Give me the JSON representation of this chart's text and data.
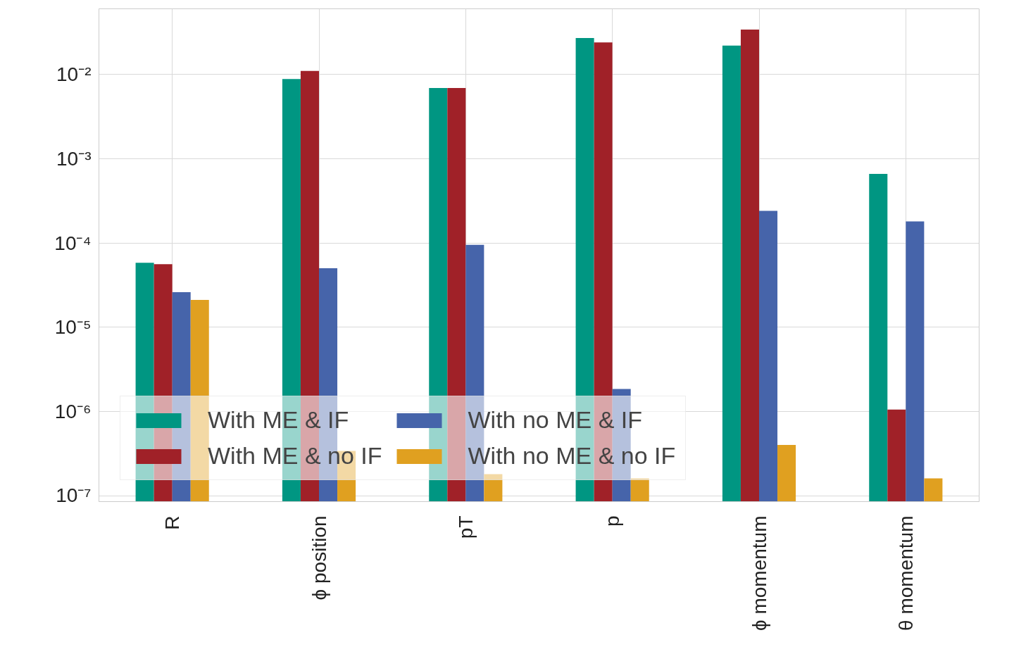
{
  "chart_data": {
    "type": "bar",
    "categories": [
      "R",
      "ϕ position",
      "pT",
      "p",
      "ϕ momentum",
      "θ momentum"
    ],
    "series": [
      {
        "name": "With ME & IF",
        "color": "#009682",
        "values": [
          5.8e-05,
          0.0088,
          0.0069,
          0.027,
          0.022,
          0.00066
        ]
      },
      {
        "name": "With ME & no IF",
        "color": "#a02128",
        "values": [
          5.6e-05,
          0.011,
          0.0069,
          0.024,
          0.034,
          1.05e-06
        ]
      },
      {
        "name": "With no ME & IF",
        "color": "#4664aa",
        "values": [
          2.6e-05,
          5e-05,
          9.5e-05,
          1.85e-06,
          0.00024,
          0.00018
        ]
      },
      {
        "name": "With no ME & no IF",
        "color": "#e0a020",
        "values": [
          2.1e-05,
          3.4e-07,
          1.8e-07,
          1.6e-07,
          4e-07,
          1.6e-07
        ]
      }
    ],
    "log": "y",
    "ylim": [
      8.5e-08,
      0.06
    ],
    "yticks": [
      {
        "value": 1e-07,
        "label": "10⁻⁷"
      },
      {
        "value": 1e-06,
        "label": "10⁻⁶"
      },
      {
        "value": 1e-05,
        "label": "10⁻⁵"
      },
      {
        "value": 0.0001,
        "label": "10⁻⁴"
      },
      {
        "value": 0.001,
        "label": "10⁻³"
      },
      {
        "value": 0.01,
        "label": "10⁻²"
      }
    ],
    "grid": true,
    "legend": "bottom left"
  }
}
